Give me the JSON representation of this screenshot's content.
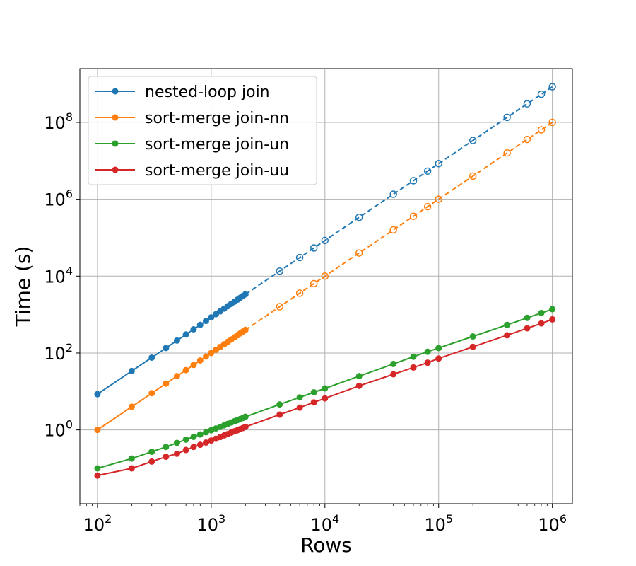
{
  "chart_data": {
    "type": "line",
    "title": "",
    "xlabel": "Rows",
    "ylabel": "Time (s)",
    "xscale": "log",
    "yscale": "log",
    "xlim": [
      70,
      1500000
    ],
    "ylim": [
      0.012,
      2500000000
    ],
    "grid": true,
    "legend_position": "top-left",
    "x_ticks": [
      {
        "base": "10",
        "exp": "2",
        "value": 100
      },
      {
        "base": "10",
        "exp": "3",
        "value": 1000
      },
      {
        "base": "10",
        "exp": "4",
        "value": 10000
      },
      {
        "base": "10",
        "exp": "5",
        "value": 100000
      },
      {
        "base": "10",
        "exp": "6",
        "value": 1000000
      }
    ],
    "y_ticks": [
      {
        "base": "10",
        "exp": "0",
        "value": 1
      },
      {
        "base": "10",
        "exp": "2",
        "value": 100
      },
      {
        "base": "10",
        "exp": "4",
        "value": 10000
      },
      {
        "base": "10",
        "exp": "6",
        "value": 1000000
      },
      {
        "base": "10",
        "exp": "8",
        "value": 100000000
      }
    ],
    "series": [
      {
        "name": "nested-loop join",
        "color": "#1f77b4",
        "measured_x": [
          100,
          200,
          300,
          400,
          500,
          600,
          700,
          800,
          900,
          1000,
          1100,
          1200,
          1300,
          1400,
          1500,
          1600,
          1700,
          1800,
          1900,
          2000
        ],
        "measured_y": [
          8.5,
          34,
          76,
          135,
          211,
          304,
          414,
          540,
          684,
          845,
          1022,
          1216,
          1427,
          1655,
          1900,
          2162,
          2441,
          2736,
          3049,
          3378
        ],
        "projected_x": [
          2000,
          4000,
          6000,
          8000,
          10000,
          20000,
          40000,
          60000,
          80000,
          100000,
          200000,
          400000,
          600000,
          800000,
          1000000
        ],
        "projected_y": [
          3378,
          13500,
          30400,
          54000,
          84500,
          338000,
          1350000,
          3040000,
          5400000,
          8450000,
          33800000,
          135000000,
          304000000,
          540000000,
          845000000
        ]
      },
      {
        "name": "sort-merge join-nn",
        "color": "#ff7f0e",
        "measured_x": [
          100,
          200,
          300,
          400,
          500,
          600,
          700,
          800,
          900,
          1000,
          1100,
          1200,
          1300,
          1400,
          1500,
          1600,
          1700,
          1800,
          1900,
          2000
        ],
        "measured_y": [
          1.0,
          4.0,
          9.0,
          16,
          25,
          36,
          49,
          64,
          81,
          100,
          121,
          144,
          169,
          196,
          225,
          256,
          289,
          324,
          361,
          400
        ],
        "projected_x": [
          2000,
          4000,
          6000,
          8000,
          10000,
          20000,
          40000,
          60000,
          80000,
          100000,
          200000,
          400000,
          600000,
          800000,
          1000000
        ],
        "projected_y": [
          400,
          1600,
          3600,
          6400,
          10000,
          40000,
          160000,
          360000,
          640000,
          1000000,
          4000000,
          16000000,
          36000000,
          64000000,
          100000000
        ]
      },
      {
        "name": "sort-merge join-un",
        "color": "#2ca02c",
        "measured_x": [
          100,
          200,
          300,
          400,
          500,
          600,
          700,
          800,
          900,
          1000,
          1100,
          1200,
          1300,
          1400,
          1500,
          1600,
          1700,
          1800,
          1900,
          2000,
          4000,
          6000,
          8000,
          10000,
          20000,
          40000,
          60000,
          80000,
          100000,
          200000,
          400000,
          600000,
          800000,
          1000000
        ],
        "measured_y": [
          0.1,
          0.18,
          0.27,
          0.36,
          0.46,
          0.56,
          0.66,
          0.76,
          0.87,
          0.98,
          1.09,
          1.2,
          1.32,
          1.44,
          1.56,
          1.68,
          1.8,
          1.92,
          2.05,
          2.2,
          4.6,
          7.0,
          9.5,
          12.0,
          25,
          52,
          80,
          108,
          135,
          270,
          540,
          820,
          1100,
          1380
        ]
      },
      {
        "name": "sort-merge join-uu",
        "color": "#d62728",
        "measured_x": [
          100,
          200,
          300,
          400,
          500,
          600,
          700,
          800,
          900,
          1000,
          1100,
          1200,
          1300,
          1400,
          1500,
          1600,
          1700,
          1800,
          1900,
          2000,
          4000,
          6000,
          8000,
          10000,
          20000,
          40000,
          60000,
          80000,
          100000,
          200000,
          400000,
          600000,
          800000,
          1000000
        ],
        "measured_y": [
          0.065,
          0.1,
          0.15,
          0.2,
          0.24,
          0.3,
          0.36,
          0.41,
          0.47,
          0.53,
          0.59,
          0.65,
          0.72,
          0.78,
          0.85,
          0.92,
          0.98,
          1.05,
          1.12,
          1.2,
          2.5,
          3.8,
          5.2,
          6.6,
          14,
          28,
          42,
          56,
          72,
          145,
          290,
          440,
          590,
          750
        ]
      }
    ]
  }
}
